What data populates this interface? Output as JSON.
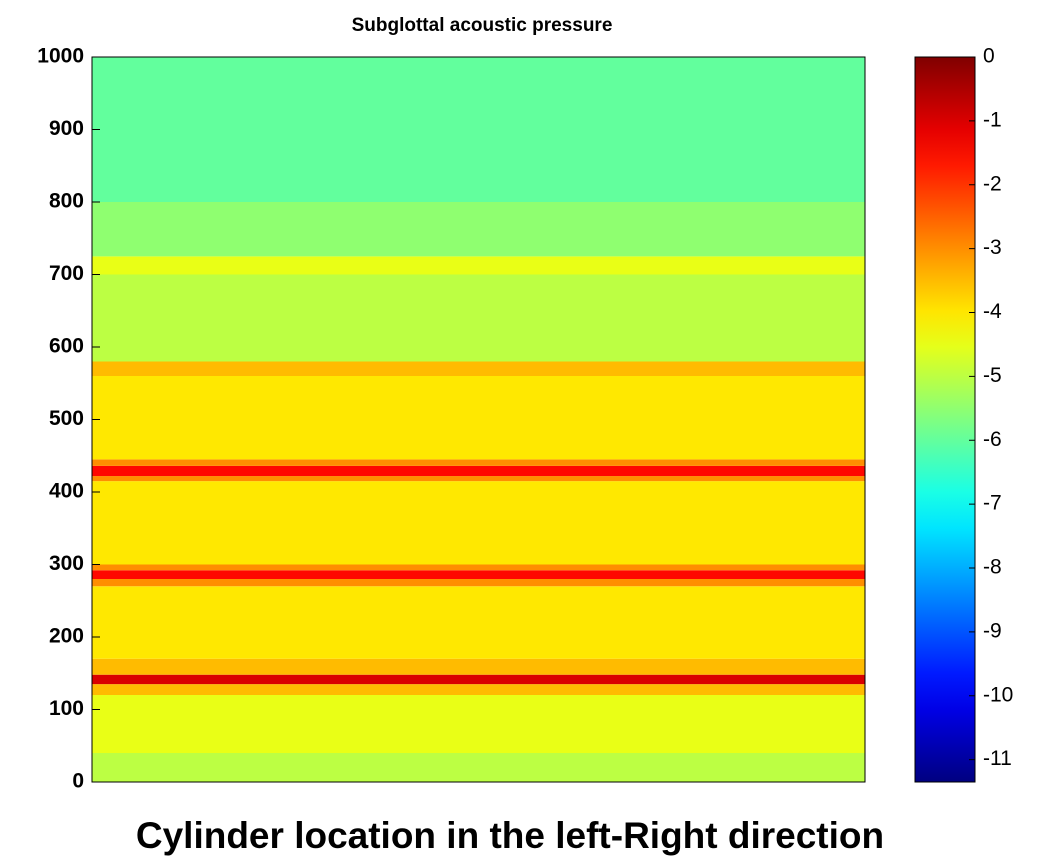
{
  "chart_data": {
    "type": "heatmap",
    "title": "Subglottal acoustic pressure",
    "x_label": "Cylinder location in the left-Right direction",
    "y_edges": [
      0,
      40,
      120,
      135,
      148,
      170,
      270,
      280,
      292,
      300,
      415,
      422,
      436,
      445,
      560,
      580,
      700,
      725,
      800,
      1000
    ],
    "values": [
      -5,
      -4.5,
      -3.5,
      -1,
      -3.5,
      -4,
      -3,
      -1.5,
      -3,
      -4,
      -3,
      -1.5,
      -3,
      -4,
      -3.5,
      -5,
      -4.5,
      -5.5,
      -6
    ],
    "ylim": [
      0,
      1000
    ],
    "yticks": [
      0,
      100,
      200,
      300,
      400,
      500,
      600,
      700,
      800,
      900,
      1000
    ],
    "colormap": "jet",
    "clim": [
      -11.35,
      0
    ],
    "cticks": [
      0,
      -1,
      -2,
      -3,
      -4,
      -5,
      -6,
      -7,
      -8,
      -9,
      -10,
      -11
    ]
  }
}
